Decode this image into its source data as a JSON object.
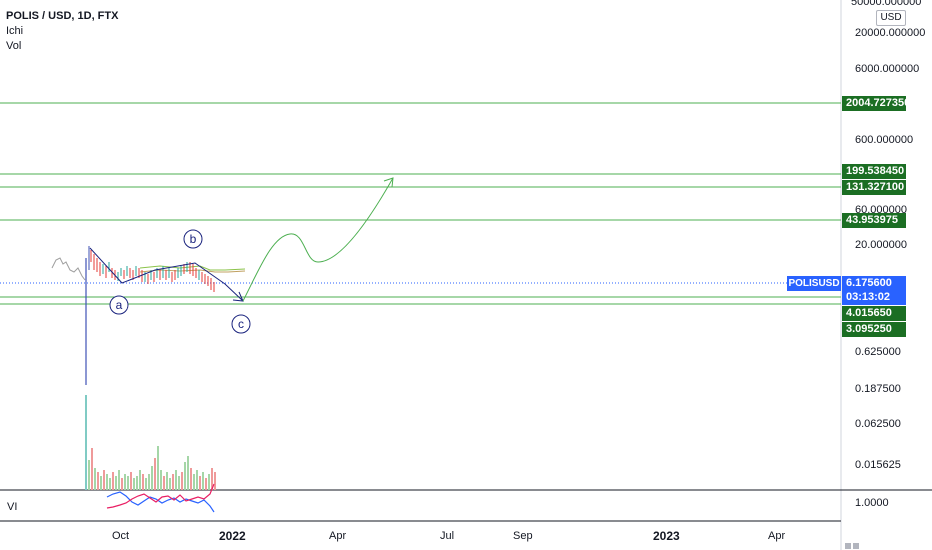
{
  "legend": {
    "title": "POLIS / USD, 1D, FTX",
    "ind1": "Ichi",
    "ind2": "Vol"
  },
  "currency_button": "USD",
  "axis_labels": [
    "50000.000000",
    "20000.000000",
    "6000.000000",
    "600.000000",
    "60.000000",
    "20.000000",
    "0.625000",
    "0.187500",
    "0.062500",
    "0.015625"
  ],
  "levels": [
    "2004.727350",
    "199.538450",
    "131.327100",
    "43.953975",
    "4.015650",
    "3.095250"
  ],
  "current_price": "6.175600",
  "countdown": "03:13:02",
  "symbol_tag": "POLISUSD",
  "indicator_pane": {
    "label": "VI",
    "scale_value": "1.0000"
  },
  "wave_labels": [
    "a",
    "b",
    "c"
  ],
  "time_axis": [
    "Oct",
    "2022",
    "Apr",
    "Jul",
    "Sep",
    "2023",
    "Apr"
  ],
  "colors": {
    "level_line": "#4caf50",
    "level_tag": "#1b6e23",
    "accent_blue": "#2962ff",
    "wave_circle": "#1a237e"
  }
}
